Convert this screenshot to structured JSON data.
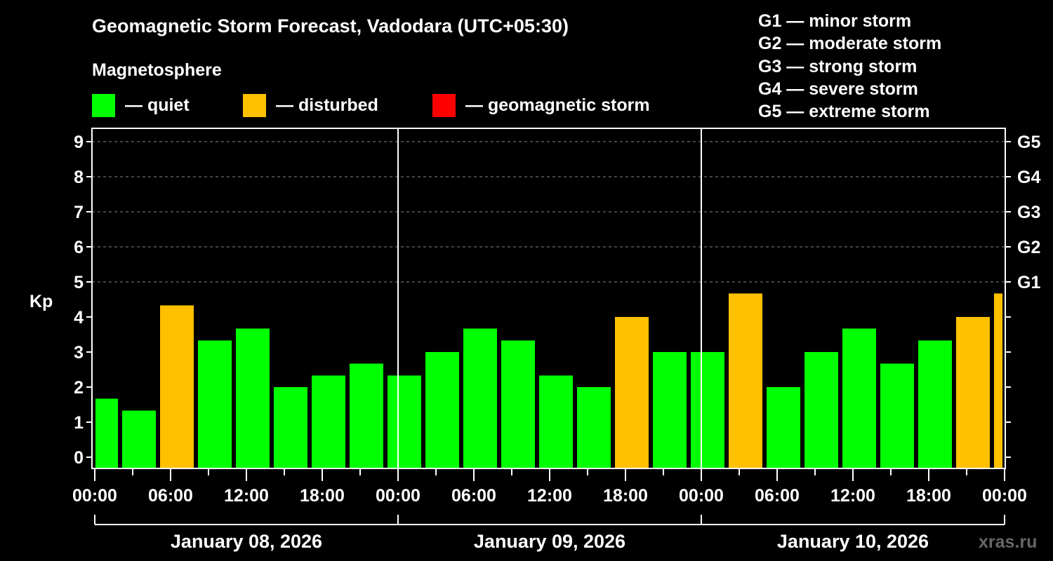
{
  "title": "Geomagnetic Storm Forecast, Vadodara (UTC+05:30)",
  "legend": {
    "heading": "Magnetosphere",
    "items": [
      {
        "label": "— quiet",
        "color": "#00ff00"
      },
      {
        "label": "— disturbed",
        "color": "#ffc000"
      },
      {
        "label": "— geomagnetic storm",
        "color": "#ff0000"
      }
    ]
  },
  "storm_levels": [
    "G1 — minor storm",
    "G2 — moderate storm",
    "G3 — strong storm",
    "G4 — severe storm",
    "G5 — extreme storm"
  ],
  "watermark": "xras.ru",
  "chart_data": {
    "type": "bar",
    "title": "Geomagnetic Storm Forecast, Vadodara (UTC+05:30)",
    "ylabel": "Kp",
    "ylim": [
      0,
      9
    ],
    "yticks": [
      "0",
      "1",
      "2",
      "3",
      "4",
      "5",
      "6",
      "7",
      "8",
      "9"
    ],
    "right_ticks": [
      {
        "kp": 5,
        "label": "G1"
      },
      {
        "kp": 6,
        "label": "G2"
      },
      {
        "kp": 7,
        "label": "G3"
      },
      {
        "kp": 8,
        "label": "G4"
      },
      {
        "kp": 9,
        "label": "G5"
      }
    ],
    "xrange_hours": [
      0,
      72
    ],
    "xtick_labels": [
      "00:00",
      "06:00",
      "12:00",
      "18:00",
      "00:00",
      "06:00",
      "12:00",
      "18:00",
      "00:00",
      "06:00",
      "12:00",
      "18:00",
      "00:00"
    ],
    "days": [
      "January 08, 2026",
      "January 09, 2026",
      "January 10, 2026"
    ],
    "grid": "dashed horizontal at Kp 5-9",
    "bars": [
      {
        "start": 0,
        "end": 2,
        "kp": 1.67,
        "status": "quiet"
      },
      {
        "start": 2,
        "end": 5,
        "kp": 1.33,
        "status": "quiet"
      },
      {
        "start": 5,
        "end": 8,
        "kp": 4.33,
        "status": "disturbed"
      },
      {
        "start": 8,
        "end": 11,
        "kp": 3.33,
        "status": "quiet"
      },
      {
        "start": 11,
        "end": 14,
        "kp": 3.67,
        "status": "quiet"
      },
      {
        "start": 14,
        "end": 17,
        "kp": 2.0,
        "status": "quiet"
      },
      {
        "start": 17,
        "end": 20,
        "kp": 2.33,
        "status": "quiet"
      },
      {
        "start": 20,
        "end": 23,
        "kp": 2.67,
        "status": "quiet"
      },
      {
        "start": 23,
        "end": 26,
        "kp": 2.33,
        "status": "quiet"
      },
      {
        "start": 26,
        "end": 29,
        "kp": 3.0,
        "status": "quiet"
      },
      {
        "start": 29,
        "end": 32,
        "kp": 3.67,
        "status": "quiet"
      },
      {
        "start": 32,
        "end": 35,
        "kp": 3.33,
        "status": "quiet"
      },
      {
        "start": 35,
        "end": 38,
        "kp": 2.33,
        "status": "quiet"
      },
      {
        "start": 38,
        "end": 41,
        "kp": 2.0,
        "status": "quiet"
      },
      {
        "start": 41,
        "end": 44,
        "kp": 4.0,
        "status": "disturbed"
      },
      {
        "start": 44,
        "end": 47,
        "kp": 3.0,
        "status": "quiet"
      },
      {
        "start": 47,
        "end": 50,
        "kp": 3.0,
        "status": "quiet"
      },
      {
        "start": 50,
        "end": 53,
        "kp": 4.67,
        "status": "disturbed"
      },
      {
        "start": 53,
        "end": 56,
        "kp": 2.0,
        "status": "quiet"
      },
      {
        "start": 56,
        "end": 59,
        "kp": 3.0,
        "status": "quiet"
      },
      {
        "start": 59,
        "end": 62,
        "kp": 3.67,
        "status": "quiet"
      },
      {
        "start": 62,
        "end": 65,
        "kp": 2.67,
        "status": "quiet"
      },
      {
        "start": 65,
        "end": 68,
        "kp": 3.33,
        "status": "quiet"
      },
      {
        "start": 68,
        "end": 71,
        "kp": 4.0,
        "status": "disturbed"
      },
      {
        "start": 71,
        "end": 72,
        "kp": 4.67,
        "status": "disturbed"
      }
    ],
    "colors": {
      "quiet": "#00ff00",
      "disturbed": "#ffc000",
      "storm": "#ff0000"
    }
  }
}
